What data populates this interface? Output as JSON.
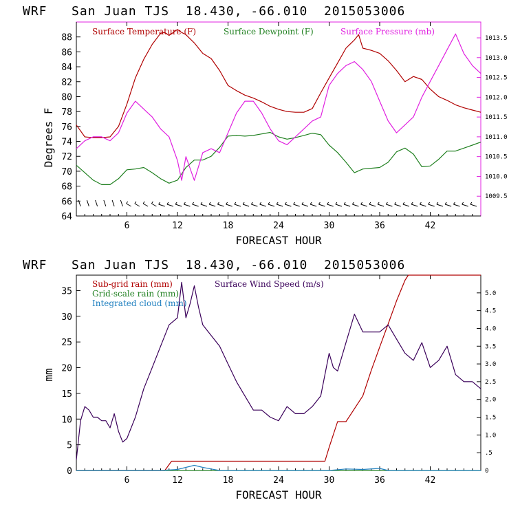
{
  "chart_data": [
    {
      "type": "line",
      "title": "WRF   San Juan TJS  18.430, -66.010  2015053006",
      "xlabel": "FORECAST HOUR",
      "ylabel": "Degrees F",
      "xlim": [
        0,
        48
      ],
      "xticks": [
        6,
        12,
        18,
        24,
        30,
        36,
        42
      ],
      "ylim": [
        64,
        90
      ],
      "yticks": [
        64,
        66,
        68,
        70,
        72,
        74,
        76,
        78,
        80,
        82,
        84,
        86,
        88
      ],
      "y2lim": [
        1009.0,
        1013.9
      ],
      "y2ticks": [
        "1009.5",
        "1010.0",
        "1010.5",
        "1011.0",
        "1011.5",
        "1012.0",
        "1012.5",
        "1013.0",
        "1013.5"
      ],
      "colors": {
        "temp": "#b00000",
        "dew": "#208020",
        "pres": "#e020e0"
      },
      "legend": [
        "Surface Temperature (F)",
        "Surface Dewpoint (F)",
        "Surface Pressure (mb)"
      ],
      "series": [
        {
          "name": "Surface Temperature (F)",
          "axis": "left",
          "x": [
            0,
            1,
            2,
            3,
            4,
            5,
            6,
            7,
            8,
            9,
            10,
            10.5,
            11,
            11.5,
            12,
            12.5,
            13,
            14,
            15,
            16,
            17,
            18,
            19,
            20,
            21,
            22,
            23,
            24,
            25,
            26,
            27,
            28,
            29,
            30,
            31,
            32,
            33,
            33.5,
            34,
            35,
            36,
            37,
            38,
            39,
            40,
            41,
            42,
            43,
            44,
            45,
            46,
            47,
            48
          ],
          "y": [
            76.2,
            74.6,
            74.5,
            74.5,
            74.6,
            76,
            79,
            82.5,
            85,
            87,
            88.5,
            88.6,
            88.2,
            88.6,
            89.0,
            88.6,
            88.3,
            87.2,
            85.8,
            85.1,
            83.5,
            81.5,
            80.8,
            80.2,
            79.8,
            79.3,
            78.7,
            78.3,
            78.0,
            77.9,
            77.9,
            78.4,
            80.5,
            82.5,
            84.5,
            86.5,
            87.6,
            88.3,
            86.5,
            86.2,
            85.8,
            84.8,
            83.5,
            82.0,
            82.7,
            82.3,
            81.0,
            80.0,
            79.5,
            78.9,
            78.5,
            78.2,
            77.9
          ]
        },
        {
          "name": "Surface Dewpoint (F)",
          "axis": "left",
          "x": [
            0,
            1,
            2,
            3,
            4,
            5,
            6,
            7,
            8,
            9,
            10,
            11,
            12,
            13,
            14,
            15,
            16,
            17,
            18,
            19,
            20,
            21,
            22,
            23,
            24,
            25,
            26,
            27,
            28,
            29,
            30,
            31,
            32,
            33,
            34,
            35,
            36,
            37,
            38,
            39,
            40,
            41,
            42,
            43,
            44,
            45,
            46,
            47,
            48
          ],
          "y": [
            70.8,
            69.8,
            68.8,
            68.2,
            68.2,
            69.0,
            70.2,
            70.3,
            70.5,
            69.8,
            69.0,
            68.4,
            68.8,
            70.5,
            71.5,
            71.5,
            72.0,
            73.2,
            74.7,
            74.8,
            74.7,
            74.8,
            75.0,
            75.2,
            74.6,
            74.3,
            74.5,
            74.8,
            75.1,
            74.9,
            73.5,
            72.5,
            71.2,
            69.8,
            70.3,
            70.4,
            70.5,
            71.2,
            72.6,
            73.1,
            72.3,
            70.6,
            70.7,
            71.6,
            72.7,
            72.7,
            73.1,
            73.5,
            73.9
          ]
        },
        {
          "name": "Surface Pressure (mb)",
          "axis": "right",
          "x": [
            0,
            1,
            2,
            3,
            4,
            5,
            6,
            7,
            8,
            9,
            10,
            11,
            12,
            12.5,
            13,
            14,
            15,
            16,
            17,
            18,
            19,
            20,
            21,
            22,
            23,
            24,
            25,
            26,
            27,
            28,
            29,
            30,
            31,
            32,
            33,
            34,
            35,
            36,
            37,
            38,
            39,
            40,
            41,
            42,
            43,
            44,
            45,
            46,
            47,
            48
          ],
          "y": [
            1010.7,
            1010.9,
            1011.0,
            1011.0,
            1010.9,
            1011.1,
            1011.6,
            1011.9,
            1011.7,
            1011.5,
            1011.2,
            1011.0,
            1010.4,
            1009.9,
            1010.5,
            1009.9,
            1010.6,
            1010.7,
            1010.6,
            1011.1,
            1011.6,
            1011.9,
            1011.9,
            1011.6,
            1011.2,
            1010.9,
            1010.8,
            1011.0,
            1011.2,
            1011.4,
            1011.5,
            1012.3,
            1012.6,
            1012.8,
            1012.9,
            1012.7,
            1012.4,
            1011.9,
            1011.4,
            1011.1,
            1011.3,
            1011.5,
            1012.0,
            1012.4,
            1012.8,
            1013.2,
            1013.6,
            1013.1,
            1012.8,
            1012.6
          ]
        }
      ]
    },
    {
      "type": "line",
      "title": "WRF   San Juan TJS  18.430, -66.010  2015053006",
      "xlabel": "FORECAST HOUR",
      "ylabel": "mm",
      "xlim": [
        0,
        48
      ],
      "xticks": [
        6,
        12,
        18,
        24,
        30,
        36,
        42
      ],
      "ylim": [
        0,
        38
      ],
      "yticks": [
        0,
        5,
        10,
        15,
        20,
        25,
        30,
        35
      ],
      "y2lim": [
        0,
        5.5
      ],
      "y2ticks": [
        "0",
        ".5",
        "1.0",
        "1.5",
        "2.0",
        "2.5",
        "3.0",
        "3.5",
        "4.0",
        "4.5",
        "5.0"
      ],
      "colors": {
        "subgrid": "#b00000",
        "wind": "#3a005a",
        "grid": "#208020",
        "cloud": "#2080c0"
      },
      "legend": [
        "Sub-grid rain (mm)",
        "Surface Wind Speed (m/s)",
        "Grid-scale rain (mm)",
        "Integrated cloud (mm)"
      ],
      "series": [
        {
          "name": "Sub-grid rain (mm)",
          "axis": "left",
          "x": [
            0,
            10.5,
            11.3,
            29.5,
            30,
            31,
            32,
            34,
            35,
            36,
            37,
            38,
            39,
            39.4,
            48
          ],
          "y": [
            0,
            0,
            1.8,
            1.8,
            4.5,
            9.5,
            9.5,
            14.5,
            19.5,
            24,
            28.5,
            33,
            37,
            38,
            38
          ]
        },
        {
          "name": "Grid-scale rain (mm)",
          "axis": "left",
          "x": [
            0,
            48
          ],
          "y": [
            0,
            0
          ]
        },
        {
          "name": "Integrated cloud (mm)",
          "axis": "left",
          "x": [
            0,
            10,
            12,
            13,
            14,
            15,
            16,
            17,
            30,
            32,
            34,
            36,
            37,
            48
          ],
          "y": [
            0,
            0,
            0.2,
            0.6,
            1.0,
            0.6,
            0.3,
            0,
            0,
            0.3,
            0.2,
            0.4,
            0,
            0
          ]
        },
        {
          "name": "Surface Wind Speed (m/s)",
          "axis": "right",
          "x": [
            0,
            0.5,
            1,
            1.5,
            2,
            2.5,
            3,
            3.5,
            4,
            4.5,
            5,
            5.5,
            6,
            7,
            8,
            9,
            10,
            11,
            12,
            12.5,
            13,
            13.5,
            14,
            14.5,
            15,
            16,
            17,
            18,
            19,
            20,
            21,
            22,
            23,
            24,
            25,
            26,
            27,
            28,
            29,
            30,
            30.5,
            31,
            32,
            33,
            34,
            35,
            36,
            37,
            38,
            39,
            40,
            41,
            42,
            43,
            44,
            45,
            46,
            47,
            48
          ],
          "y": [
            0.3,
            1.4,
            1.8,
            1.7,
            1.5,
            1.5,
            1.4,
            1.4,
            1.2,
            1.6,
            1.1,
            0.8,
            0.9,
            1.5,
            2.3,
            2.9,
            3.5,
            4.1,
            4.3,
            5.3,
            4.3,
            4.7,
            5.2,
            4.6,
            4.1,
            3.8,
            3.5,
            3.0,
            2.5,
            2.1,
            1.7,
            1.7,
            1.5,
            1.4,
            1.8,
            1.6,
            1.6,
            1.8,
            2.1,
            3.3,
            2.9,
            2.8,
            3.6,
            4.4,
            3.9,
            3.9,
            3.9,
            4.1,
            3.7,
            3.3,
            3.1,
            3.6,
            2.9,
            3.1,
            3.5,
            2.7,
            2.5,
            2.5,
            2.3
          ]
        }
      ],
      "y2_hidden_top_label": "5.5"
    }
  ],
  "wind_barbs": "surface wind barbs along lower axis"
}
